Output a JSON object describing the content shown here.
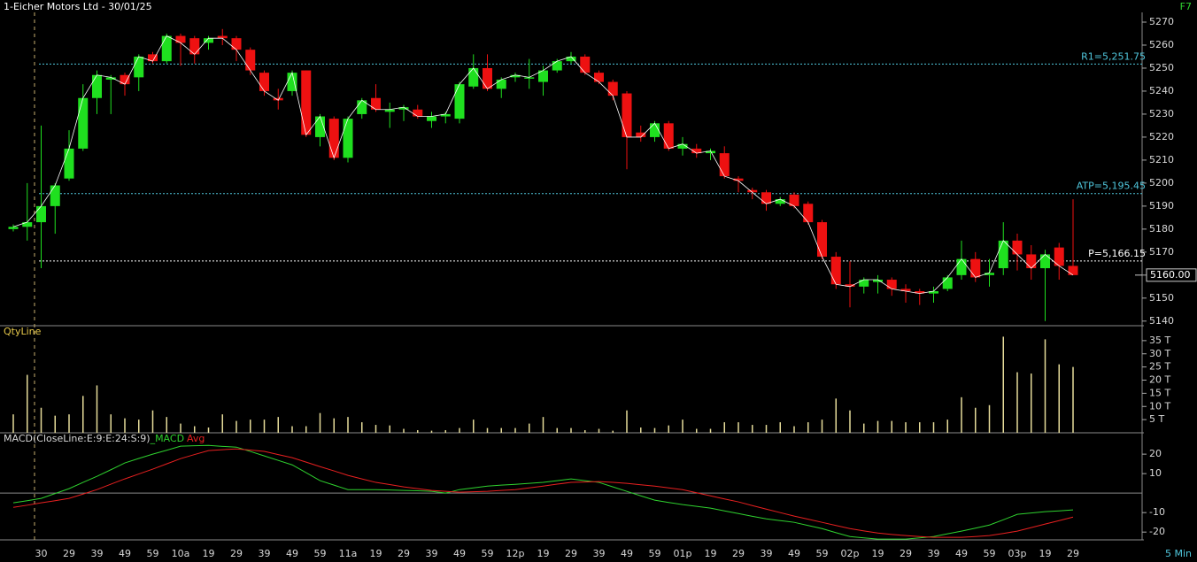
{
  "toolbar": {
    "hotkey": "F7",
    "interval": "5 Min"
  },
  "chart_data": [
    {
      "type": "candlestick",
      "title": "1-Eicher Motors Ltd - 30/01/25",
      "categories": [
        null,
        null,
        "30",
        null,
        "29",
        null,
        "39",
        null,
        "49",
        null,
        "59",
        null,
        "10a",
        null,
        "19",
        null,
        "29",
        null,
        "39",
        null,
        "49",
        null,
        "59",
        null,
        "11a",
        null,
        "19",
        null,
        "29",
        null,
        "39",
        null,
        "49",
        null,
        "59",
        null,
        "12p",
        null,
        "19",
        null,
        "29",
        null,
        "39",
        null,
        "49",
        null,
        "59",
        null,
        "01p",
        null,
        "19",
        null,
        "29",
        null,
        "39",
        null,
        "49",
        null,
        "59",
        null,
        "02p",
        null,
        "19",
        null,
        "29",
        null,
        "39",
        null,
        "49",
        null,
        "59",
        null,
        "03p",
        null,
        "19",
        null,
        "29"
      ],
      "open": [
        5180,
        5181,
        5183,
        5190,
        5202,
        5215,
        5237,
        5245,
        5247,
        5246,
        5256,
        5253,
        5264,
        5263,
        5261,
        5264,
        5263,
        5258,
        5248,
        5237,
        5240,
        5249,
        5220,
        5228,
        5211,
        5230,
        5237,
        5231,
        5232,
        5232,
        5227,
        5229,
        5228,
        5242,
        5250,
        5241,
        5246,
        5246,
        5244,
        5249,
        5253,
        5255,
        5248,
        5244,
        5239,
        5222,
        5220,
        5226,
        5215,
        5215,
        5213,
        5213,
        5202,
        5197,
        5196,
        5191,
        5195,
        5191,
        5183,
        5168,
        5156,
        5155,
        5157,
        5158,
        5154,
        5153,
        5152,
        5154,
        5160,
        5167,
        5160,
        5163,
        5175,
        5169,
        5163,
        5172,
        5164
      ],
      "high": [
        5182,
        5200,
        5225,
        5200,
        5223,
        5243,
        5249,
        5247,
        5248,
        5256,
        5257,
        5265,
        5265,
        5264,
        5264,
        5267,
        5264,
        5259,
        5249,
        5241,
        5249,
        5249,
        5230,
        5229,
        5229,
        5237,
        5243,
        5235,
        5234,
        5234,
        5231,
        5231,
        5244,
        5256,
        5256,
        5246,
        5248,
        5254,
        5251,
        5254,
        5257,
        5256,
        5249,
        5245,
        5240,
        5225,
        5227,
        5227,
        5220,
        5217,
        5215,
        5216,
        5203,
        5198,
        5197,
        5194,
        5196,
        5192,
        5184,
        5170,
        5166,
        5159,
        5160,
        5159,
        5156,
        5154,
        5155,
        5160,
        5175,
        5170,
        5167,
        5183,
        5178,
        5173,
        5171,
        5174,
        5193
      ],
      "low": [
        5179,
        5175,
        5163,
        5178,
        5201,
        5214,
        5230,
        5230,
        5238,
        5240,
        5252,
        5252,
        5251,
        5252,
        5258,
        5260,
        5253,
        5247,
        5238,
        5232,
        5238,
        5220,
        5216,
        5210,
        5209,
        5228,
        5231,
        5224,
        5227,
        5228,
        5224,
        5226,
        5226,
        5241,
        5240,
        5237,
        5244,
        5241,
        5238,
        5248,
        5252,
        5247,
        5243,
        5236,
        5206,
        5218,
        5218,
        5214,
        5212,
        5211,
        5210,
        5202,
        5196,
        5193,
        5188,
        5190,
        5189,
        5182,
        5167,
        5154,
        5146,
        5152,
        5152,
        5151,
        5148,
        5147,
        5148,
        5153,
        5158,
        5157,
        5155,
        5160,
        5162,
        5158,
        5140,
        5158,
        5160
      ],
      "close": [
        5181,
        5183,
        5190,
        5199,
        5215,
        5237,
        5247,
        5246,
        5243,
        5255,
        5253,
        5264,
        5261,
        5256,
        5263,
        5263,
        5258,
        5249,
        5240,
        5236,
        5248,
        5221,
        5229,
        5211,
        5228,
        5236,
        5232,
        5232,
        5233,
        5229,
        5229,
        5230,
        5243,
        5250,
        5241,
        5245,
        5247,
        5246,
        5249,
        5253,
        5255,
        5248,
        5244,
        5238,
        5220,
        5220,
        5226,
        5215,
        5217,
        5213,
        5214,
        5203,
        5201,
        5196,
        5191,
        5193,
        5190,
        5183,
        5168,
        5156,
        5155,
        5158,
        5158,
        5154,
        5153,
        5152,
        5153,
        5159,
        5167,
        5159,
        5161,
        5175,
        5169,
        5163,
        5169,
        5164,
        5160
      ],
      "up_color": "#1fe01f",
      "down_color": "#ee1111",
      "line_color": "#ffffff",
      "ylim": [
        5138,
        5274
      ],
      "yticks": [
        5140,
        5150,
        5160,
        5170,
        5180,
        5190,
        5200,
        5210,
        5220,
        5230,
        5240,
        5250,
        5260,
        5270
      ],
      "levels": [
        {
          "label": "R1=5,251.75",
          "value": 5251.75,
          "color": "#4fc6dc"
        },
        {
          "label": "ATP=5,195.45",
          "value": 5195.45,
          "color": "#4fc6dc"
        },
        {
          "label": "P=5,166.15",
          "value": 5166.15,
          "color": "#ffffff"
        }
      ],
      "last_price": {
        "value": 5160,
        "label": "5160.00"
      }
    },
    {
      "type": "volume",
      "title": "QtyLine",
      "color": "#e6dc9a",
      "values": [
        7,
        22,
        9.5,
        6.5,
        7,
        14,
        18,
        7,
        5.5,
        5,
        8.5,
        6,
        3.5,
        2.5,
        2,
        7,
        4.5,
        5,
        5,
        6,
        2.5,
        2.5,
        7.5,
        5.5,
        6,
        4,
        3,
        2.8,
        1.5,
        1,
        0.8,
        1,
        1.8,
        5,
        1.8,
        1.8,
        1.8,
        3.5,
        6,
        1.8,
        1.8,
        1,
        1.5,
        0.8,
        8.5,
        2,
        1.8,
        2.8,
        5,
        1.5,
        1.5,
        4,
        4,
        3,
        3,
        4,
        2.5,
        4,
        5,
        13,
        8.5,
        3.5,
        4.5,
        4.5,
        4,
        4,
        4,
        5,
        13.5,
        9.5,
        10.5,
        36.5,
        23,
        22.5,
        35.5,
        26,
        25
      ],
      "ylim": [
        0,
        40
      ],
      "yticks": [
        {
          "value": 5,
          "label": "5 T"
        },
        {
          "value": 10,
          "label": "10 T"
        },
        {
          "value": 15,
          "label": "15 T"
        },
        {
          "value": 20,
          "label": "20 T"
        },
        {
          "value": 25,
          "label": "25 T"
        },
        {
          "value": 30,
          "label": "30 T"
        },
        {
          "value": 35,
          "label": "35 T"
        }
      ]
    },
    {
      "type": "line",
      "title": "MACD(CloseLine:E:9:E:24:S:9)",
      "series": [
        {
          "name": "_MACD",
          "color": "#2fd22f",
          "values": [
            -5.0,
            -3.9,
            -2.7,
            -0.2,
            2.3,
            5.5,
            8.6,
            12.0,
            15.5,
            17.8,
            20.0,
            22.0,
            24.1,
            24.3,
            24.5,
            24.0,
            23.6,
            21.4,
            19.1,
            16.8,
            14.5,
            10.5,
            6.4,
            4.1,
            1.8,
            1.8,
            1.8,
            1.6,
            1.4,
            1.2,
            0.9,
            0.0,
            1.8,
            2.7,
            3.6,
            4.1,
            4.5,
            5.0,
            5.5,
            6.4,
            7.3,
            6.4,
            5.5,
            3.2,
            0.9,
            -1.4,
            -3.6,
            -4.8,
            -5.9,
            -6.8,
            -7.7,
            -9.1,
            -10.5,
            -11.9,
            -13.2,
            -14.1,
            -15.0,
            -16.6,
            -18.2,
            -20.3,
            -22.3,
            -23.0,
            -23.6,
            -23.6,
            -23.6,
            -23.0,
            -22.3,
            -20.9,
            -19.5,
            -18.0,
            -16.4,
            -13.7,
            -10.9,
            -10.2,
            -9.5,
            -9.1,
            -8.6
          ]
        },
        {
          "name": "Avg",
          "color": "#e82020",
          "values": [
            -7.3,
            -6.2,
            -5.0,
            -3.9,
            -2.7,
            -0.5,
            1.8,
            4.6,
            7.3,
            9.8,
            12.3,
            15.0,
            17.7,
            19.8,
            21.8,
            22.3,
            22.7,
            22.1,
            21.4,
            19.8,
            18.2,
            15.9,
            13.6,
            11.4,
            9.1,
            7.3,
            5.5,
            4.4,
            3.2,
            2.3,
            1.4,
            0.9,
            0.5,
            0.7,
            0.9,
            1.4,
            1.8,
            2.7,
            3.6,
            4.6,
            5.5,
            5.7,
            5.9,
            5.5,
            5.0,
            4.3,
            3.6,
            2.7,
            1.8,
            0.2,
            -1.4,
            -3.0,
            -4.5,
            -6.4,
            -8.2,
            -10.0,
            -11.8,
            -13.4,
            -15.0,
            -16.6,
            -18.2,
            -19.4,
            -20.5,
            -21.2,
            -21.8,
            -22.3,
            -22.7,
            -22.7,
            -22.7,
            -22.3,
            -21.8,
            -20.7,
            -19.5,
            -17.7,
            -15.9,
            -14.1,
            -12.3
          ]
        }
      ],
      "ylim": [
        -24,
        29.6
      ],
      "yticks": [
        20,
        10,
        -10,
        -20
      ]
    }
  ]
}
